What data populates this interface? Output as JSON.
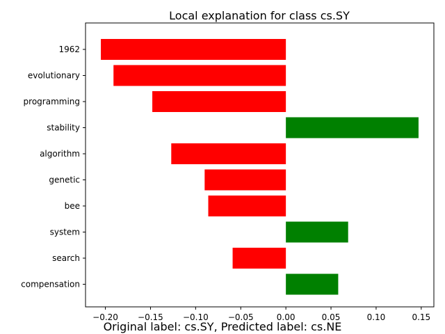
{
  "chart_data": {
    "type": "bar",
    "orientation": "horizontal",
    "title": "Local explanation for class cs.SY",
    "xlabel": "",
    "ylabel": "",
    "categories": [
      "1962",
      "evolutionary",
      "programming",
      "stability",
      "algorithm",
      "genetic",
      "bee",
      "system",
      "search",
      "compensation"
    ],
    "values": [
      -0.205,
      -0.191,
      -0.148,
      0.147,
      -0.127,
      -0.09,
      -0.086,
      0.069,
      -0.059,
      0.058
    ],
    "xlim": [
      -0.222,
      0.164
    ],
    "xticks": [
      -0.2,
      -0.15,
      -0.1,
      -0.05,
      0.0,
      0.05,
      0.1,
      0.15
    ],
    "xtick_labels": [
      "−0.20",
      "−0.15",
      "−0.10",
      "−0.05",
      "0.00",
      "0.05",
      "0.10",
      "0.15"
    ],
    "grid": false,
    "colors": {
      "positive": "#008000",
      "negative": "#ff0000"
    }
  },
  "caption": "Original label: cs.SY, Predicted label: cs.NE"
}
